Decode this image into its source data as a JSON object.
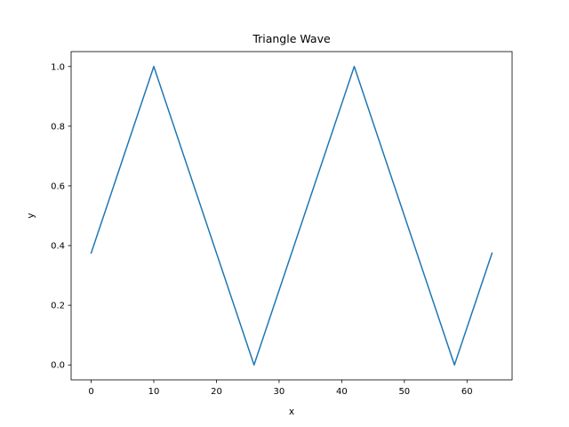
{
  "chart_data": {
    "type": "line",
    "title": "Triangle Wave",
    "xlabel": "x",
    "ylabel": "y",
    "xlim": [
      -3.2,
      67.2
    ],
    "ylim": [
      -0.05,
      1.05
    ],
    "x_ticks": [
      0,
      10,
      20,
      30,
      40,
      50,
      60
    ],
    "y_ticks": [
      0.0,
      0.2,
      0.4,
      0.6,
      0.8,
      1.0
    ],
    "y_tick_labels": [
      "0.0",
      "0.2",
      "0.4",
      "0.6",
      "0.8",
      "1.0"
    ],
    "grid": false,
    "series": [
      {
        "color": "#1f77b4",
        "x": [
          0,
          10,
          26,
          42,
          58,
          64
        ],
        "y": [
          0.375,
          1.0,
          0.0,
          1.0,
          0.0,
          0.375
        ]
      }
    ]
  }
}
